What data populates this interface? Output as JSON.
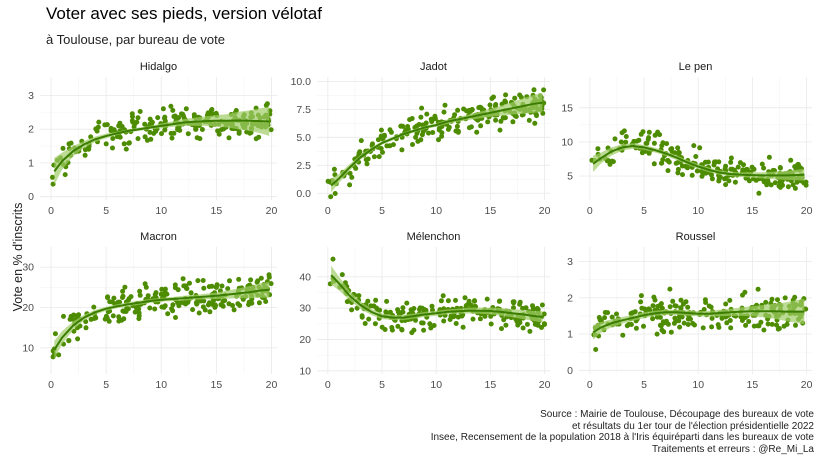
{
  "title": "Voter avec ses pieds, version vélotaf",
  "subtitle": "à Toulouse, par bureau de vote",
  "y_axis_label": "Vote en % d'inscrits",
  "caption": [
    "Source : Mairie de Toulouse, Découpage des bureaux de vote",
    "et résultats du 1er tour de l'élection présidentielle 2022",
    "Insee, Recensement de la population 2018 à l'Iris équiréparti dans les bureaux de vote",
    "Traitements et erreurs : @Re_Mi_La"
  ],
  "colors": {
    "points": "#4d8c00",
    "smooth": "#3a7d00",
    "ribbon": "#9fcc66",
    "grid": "#ebebeb"
  },
  "chart_data": [
    {
      "type": "scatter",
      "title": "Hidalgo",
      "xlim": [
        -1,
        20.5
      ],
      "ylim": [
        -0.1,
        3.55
      ],
      "xticks": [
        0,
        5,
        10,
        15,
        20
      ],
      "yticks": [
        0,
        1,
        2,
        3
      ],
      "trend": {
        "x": [
          0.3,
          1,
          2,
          3,
          4,
          5,
          6,
          7,
          8,
          9,
          10,
          11,
          12,
          13,
          14,
          15,
          16,
          17,
          18,
          19,
          19.8
        ],
        "y": [
          0.75,
          1.05,
          1.35,
          1.55,
          1.7,
          1.8,
          1.88,
          1.95,
          2.0,
          2.05,
          2.1,
          2.15,
          2.2,
          2.22,
          2.24,
          2.25,
          2.25,
          2.26,
          2.25,
          2.24,
          2.23
        ],
        "lower": [
          0.35,
          0.8,
          1.2,
          1.45,
          1.62,
          1.73,
          1.83,
          1.9,
          1.95,
          2.0,
          2.03,
          2.07,
          2.1,
          2.1,
          2.1,
          2.08,
          2.05,
          2.0,
          1.95,
          1.88,
          1.8
        ],
        "upper": [
          1.15,
          1.3,
          1.5,
          1.65,
          1.78,
          1.87,
          1.93,
          2.0,
          2.05,
          2.1,
          2.17,
          2.23,
          2.3,
          2.34,
          2.38,
          2.42,
          2.45,
          2.52,
          2.56,
          2.62,
          2.66
        ]
      }
    },
    {
      "type": "scatter",
      "title": "Jadot",
      "xlim": [
        -1,
        20.5
      ],
      "ylim": [
        -0.6,
        10.4
      ],
      "xticks": [
        0,
        5,
        10,
        15,
        20
      ],
      "yticks": [
        0.0,
        2.5,
        5.0,
        7.5,
        10.0
      ],
      "trend": {
        "x": [
          0.3,
          1,
          2,
          3,
          4,
          5,
          6,
          7,
          8,
          9,
          10,
          11,
          12,
          13,
          14,
          15,
          16,
          17,
          18,
          19,
          19.8
        ],
        "y": [
          0.7,
          1.3,
          2.3,
          3.2,
          3.9,
          4.5,
          4.9,
          5.3,
          5.6,
          5.9,
          6.1,
          6.4,
          6.6,
          6.8,
          7.0,
          7.2,
          7.4,
          7.6,
          7.8,
          8.0,
          8.1
        ],
        "lower": [
          0.1,
          0.9,
          2.0,
          3.0,
          3.7,
          4.35,
          4.75,
          5.15,
          5.45,
          5.75,
          5.95,
          6.2,
          6.4,
          6.55,
          6.7,
          6.85,
          6.95,
          7.05,
          7.1,
          7.2,
          7.25
        ],
        "upper": [
          1.3,
          1.7,
          2.6,
          3.4,
          4.1,
          4.65,
          5.05,
          5.45,
          5.75,
          6.05,
          6.25,
          6.6,
          6.8,
          7.05,
          7.3,
          7.55,
          7.85,
          8.15,
          8.5,
          8.8,
          8.95
        ]
      }
    },
    {
      "type": "scatter",
      "title": "Le pen",
      "xlim": [
        -1,
        20.5
      ],
      "ylim": [
        1.5,
        19.5
      ],
      "xticks": [
        0,
        5,
        10,
        15,
        20
      ],
      "yticks": [
        5,
        10,
        15
      ],
      "trend": {
        "x": [
          0.3,
          1,
          2,
          3,
          4,
          5,
          6,
          7,
          8,
          9,
          10,
          11,
          12,
          13,
          14,
          15,
          16,
          17,
          18,
          19,
          19.8
        ],
        "y": [
          6.8,
          7.6,
          8.6,
          9.2,
          9.4,
          9.2,
          8.8,
          8.3,
          7.7,
          7.0,
          6.4,
          5.9,
          5.5,
          5.3,
          5.2,
          5.15,
          5.1,
          5.1,
          5.1,
          5.15,
          5.2
        ],
        "lower": [
          5.6,
          6.8,
          8.0,
          8.75,
          9.0,
          8.85,
          8.45,
          7.95,
          7.35,
          6.65,
          6.05,
          5.55,
          5.2,
          5.0,
          4.85,
          4.75,
          4.65,
          4.55,
          4.45,
          4.4,
          4.35
        ],
        "upper": [
          8.0,
          8.4,
          9.2,
          9.65,
          9.8,
          9.55,
          9.15,
          8.65,
          8.05,
          7.35,
          6.75,
          6.25,
          5.8,
          5.6,
          5.55,
          5.55,
          5.55,
          5.65,
          5.75,
          5.9,
          6.05
        ]
      }
    },
    {
      "type": "scatter",
      "title": "Macron",
      "xlim": [
        -1,
        20.5
      ],
      "ylim": [
        3.5,
        35
      ],
      "xticks": [
        0,
        5,
        10,
        15,
        20
      ],
      "yticks": [
        10,
        20,
        30
      ],
      "trend": {
        "x": [
          0.3,
          1,
          2,
          3,
          4,
          5,
          6,
          7,
          8,
          9,
          10,
          11,
          12,
          13,
          14,
          15,
          16,
          17,
          18,
          19,
          19.8
        ],
        "y": [
          9.5,
          12.5,
          15.5,
          17.5,
          18.8,
          19.7,
          20.3,
          20.8,
          21.2,
          21.6,
          21.9,
          22.1,
          22.3,
          22.5,
          22.7,
          22.9,
          23.2,
          23.5,
          23.8,
          24.2,
          24.4
        ],
        "lower": [
          7.3,
          10.9,
          14.5,
          16.8,
          18.2,
          19.2,
          19.8,
          20.3,
          20.7,
          21.1,
          21.4,
          21.6,
          21.7,
          21.9,
          22.0,
          22.1,
          22.2,
          22.3,
          22.3,
          22.4,
          22.4
        ],
        "upper": [
          11.7,
          14.1,
          16.5,
          18.2,
          19.4,
          20.2,
          20.8,
          21.3,
          21.7,
          22.1,
          22.4,
          22.6,
          22.9,
          23.1,
          23.4,
          23.7,
          24.2,
          24.7,
          25.3,
          26.0,
          26.4
        ]
      }
    },
    {
      "type": "scatter",
      "title": "Mélenchon",
      "xlim": [
        -1,
        20.5
      ],
      "ylim": [
        9,
        49.5
      ],
      "xticks": [
        0,
        5,
        10,
        15,
        20
      ],
      "yticks": [
        10,
        20,
        30,
        40
      ],
      "trend": {
        "x": [
          0.3,
          1,
          2,
          3,
          4,
          5,
          6,
          7,
          8,
          9,
          10,
          11,
          12,
          13,
          14,
          15,
          16,
          17,
          18,
          19,
          19.8
        ],
        "y": [
          40.5,
          38,
          34,
          31,
          28.8,
          27.4,
          27,
          27,
          27.5,
          28,
          28.4,
          28.8,
          29,
          29.2,
          29.2,
          29.1,
          28.8,
          28.4,
          28,
          27.5,
          27.2
        ],
        "lower": [
          37.5,
          35.8,
          32.5,
          29.8,
          27.8,
          26.5,
          26.2,
          26.2,
          26.7,
          27.2,
          27.6,
          28,
          28.2,
          28.3,
          28.2,
          28.0,
          27.6,
          27.1,
          26.5,
          25.9,
          25.4
        ],
        "upper": [
          43.5,
          40.2,
          35.5,
          32.2,
          29.8,
          28.3,
          27.8,
          27.8,
          28.3,
          28.8,
          29.2,
          29.6,
          29.8,
          30.1,
          30.2,
          30.2,
          30.0,
          29.7,
          29.5,
          29.1,
          29.0
        ]
      }
    },
    {
      "type": "scatter",
      "title": "Roussel",
      "xlim": [
        -1,
        20.5
      ],
      "ylim": [
        -0.1,
        3.4
      ],
      "xticks": [
        0,
        5,
        10,
        15,
        20
      ],
      "yticks": [
        0,
        1,
        2,
        3
      ],
      "trend": {
        "x": [
          0.3,
          1,
          2,
          3,
          4,
          5,
          6,
          7,
          8,
          9,
          10,
          11,
          12,
          13,
          14,
          15,
          16,
          17,
          18,
          19,
          19.8
        ],
        "y": [
          1.05,
          1.18,
          1.3,
          1.38,
          1.45,
          1.52,
          1.57,
          1.6,
          1.6,
          1.58,
          1.56,
          1.56,
          1.58,
          1.6,
          1.62,
          1.63,
          1.63,
          1.63,
          1.62,
          1.62,
          1.62
        ],
        "lower": [
          0.85,
          1.03,
          1.19,
          1.29,
          1.37,
          1.44,
          1.5,
          1.53,
          1.53,
          1.51,
          1.49,
          1.48,
          1.49,
          1.5,
          1.5,
          1.49,
          1.46,
          1.42,
          1.37,
          1.31,
          1.27
        ],
        "upper": [
          1.25,
          1.33,
          1.41,
          1.47,
          1.53,
          1.6,
          1.64,
          1.67,
          1.67,
          1.65,
          1.63,
          1.64,
          1.67,
          1.7,
          1.74,
          1.77,
          1.8,
          1.84,
          1.87,
          1.93,
          1.97
        ]
      }
    }
  ]
}
